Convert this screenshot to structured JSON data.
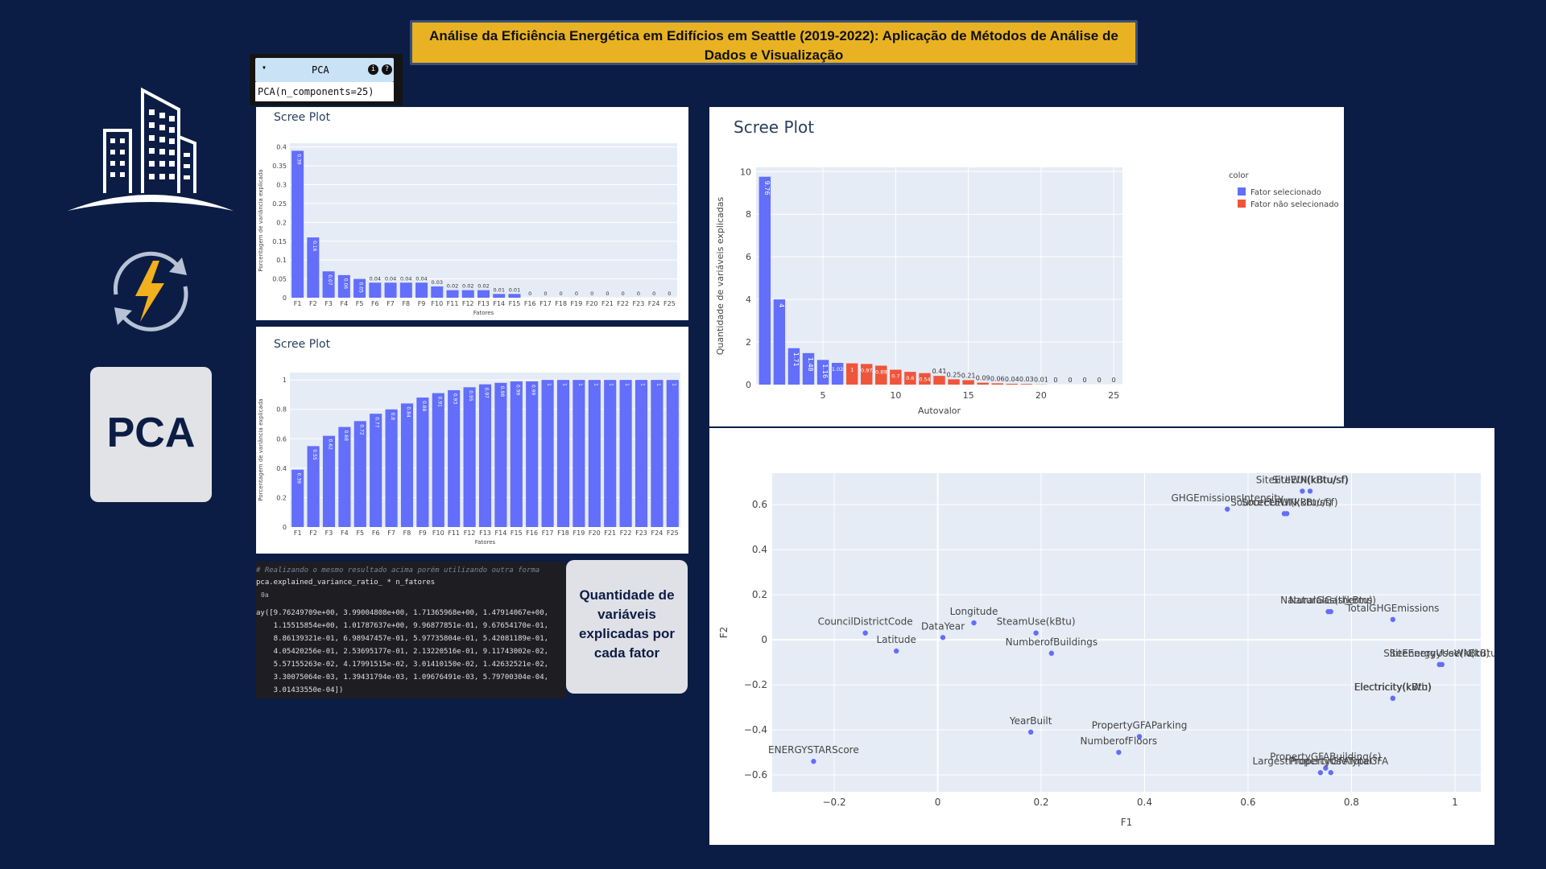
{
  "page_title": "Análise da Eficiência Energética em Edifícios em Seattle (2019-2022): Aplicação de Métodos de Análise de Dados e Visualização",
  "colors": {
    "background": "#0c1d45",
    "title_bg": "#e8b223",
    "selected": "#636efa",
    "not_selected": "#ef553b"
  },
  "icons": [
    "building-icon",
    "energy-cycle-icon"
  ],
  "pca_card_label": "PCA",
  "pca_widget": {
    "title": "PCA",
    "call": "PCA(n_components=25)",
    "toggle": "▾",
    "info": "i",
    "help": "?"
  },
  "code_cell": {
    "comment": "# Realizando o mesmo resultado acima porém utilizando outra forma",
    "command": "pca.explained_variance_ratio_ * n_fatores",
    "out_prompt": "0a",
    "output_lines": [
      "ay([9.76249709e+00, 3.99004808e+00, 1.71365968e+00, 1.47914067e+00,",
      "    1.15515854e+00, 1.01787637e+00, 9.96877851e-01, 9.67654170e-01,",
      "    8.86139321e-01, 6.98947457e-01, 5.97735804e-01, 5.42081189e-01,",
      "    4.05420256e-01, 2.53695177e-01, 2.13220516e-01, 9.11743002e-02,",
      "    5.57155263e-02, 4.17991515e-02, 3.01410150e-02, 1.42632521e-02,",
      "    3.30075064e-03, 1.39431794e-03, 1.09676491e-03, 5.79700304e-04,",
      "    3.01433550e-04])"
    ]
  },
  "quantity_card": {
    "lines": [
      "Quantidade de",
      "variáveis",
      "explicadas por",
      "cada fator"
    ]
  },
  "chart_data": [
    {
      "type": "bar",
      "title": "Scree Plot",
      "xlabel": "Fatores",
      "ylabel": "Porcentagem de variância explicada",
      "categories": [
        "F1",
        "F2",
        "F3",
        "F4",
        "F5",
        "F6",
        "F7",
        "F8",
        "F9",
        "F10",
        "F11",
        "F12",
        "F13",
        "F14",
        "F15",
        "F16",
        "F17",
        "F18",
        "F19",
        "F20",
        "F21",
        "F22",
        "F23",
        "F24",
        "F25"
      ],
      "values": [
        0.39,
        0.16,
        0.07,
        0.06,
        0.05,
        0.04,
        0.04,
        0.04,
        0.04,
        0.03,
        0.02,
        0.02,
        0.02,
        0.01,
        0.01,
        0,
        0,
        0,
        0,
        0,
        0,
        0,
        0,
        0,
        0
      ],
      "labels": [
        "0.39",
        "0.16",
        "0.07",
        "0.06",
        "0.05",
        "0.04",
        "0.04",
        "0.04",
        "0.04",
        "0.03",
        "0.02",
        "0.02",
        "0.02",
        "0.01",
        "0.01",
        "0",
        "0",
        "0",
        "0",
        "0",
        "0",
        "0",
        "0",
        "0",
        "0"
      ],
      "yticks": [
        0,
        0.05,
        0.1,
        0.15,
        0.2,
        0.25,
        0.3,
        0.35,
        0.4
      ],
      "ylim": [
        0,
        0.41
      ],
      "grid": true
    },
    {
      "type": "bar",
      "title": "Scree Plot",
      "xlabel": "Fatores",
      "ylabel": "Porcentagem de variância explicada",
      "categories": [
        "F1",
        "F2",
        "F3",
        "F4",
        "F5",
        "F6",
        "F7",
        "F8",
        "F9",
        "F10",
        "F11",
        "F12",
        "F13",
        "F14",
        "F15",
        "F16",
        "F17",
        "F18",
        "F19",
        "F20",
        "F21",
        "F22",
        "F23",
        "F24",
        "F25"
      ],
      "values": [
        0.39,
        0.55,
        0.62,
        0.68,
        0.72,
        0.77,
        0.8,
        0.84,
        0.88,
        0.91,
        0.93,
        0.95,
        0.97,
        0.98,
        0.99,
        0.99,
        1,
        1,
        1,
        1,
        1,
        1,
        1,
        1,
        1
      ],
      "labels": [
        "0.39",
        "0.55",
        "0.62",
        "0.68",
        "0.72",
        "0.77",
        "0.8",
        "0.84",
        "0.88",
        "0.91",
        "0.93",
        "0.95",
        "0.97",
        "0.98",
        "0.99",
        "0.99",
        "1",
        "1",
        "1",
        "1",
        "1",
        "1",
        "1",
        "1",
        "1"
      ],
      "yticks": [
        0,
        0.2,
        0.4,
        0.6,
        0.8,
        1
      ],
      "ylim": [
        0,
        1.05
      ],
      "grid": true
    },
    {
      "type": "bar",
      "title": "Scree Plot",
      "xlabel": "Autovalor",
      "ylabel": "Quantidade de variáveis explicadas",
      "legend_title": "color",
      "legend_position": "top-right",
      "series": [
        {
          "name": "Fator selecionado",
          "color": "#636efa"
        },
        {
          "name": "Fator não selecionado",
          "color": "#ef553b"
        }
      ],
      "x": [
        1,
        2,
        3,
        4,
        5,
        6,
        7,
        8,
        9,
        10,
        11,
        12,
        13,
        14,
        15,
        16,
        17,
        18,
        19,
        20,
        21,
        22,
        23,
        24,
        25
      ],
      "values": [
        9.76,
        4,
        1.71,
        1.48,
        1.16,
        1.02,
        1,
        0.97,
        0.89,
        0.7,
        0.6,
        0.54,
        0.41,
        0.25,
        0.21,
        0.09,
        0.06,
        0.04,
        0.03,
        0.01,
        0,
        0,
        0,
        0,
        0
      ],
      "labels": [
        "9.76",
        "4",
        "1.71",
        "1.48",
        "1.16",
        "1.02",
        "1",
        "0.97",
        "0.89",
        "0.7",
        "0.6",
        "0.54",
        "0.41",
        "0.25",
        "0.21",
        "0.09",
        "0.06",
        "0.04",
        "0.03",
        "0.01",
        "0",
        "0",
        "0",
        "0",
        "0"
      ],
      "selected": [
        true,
        true,
        true,
        true,
        true,
        true,
        false,
        false,
        false,
        false,
        false,
        false,
        false,
        false,
        false,
        false,
        false,
        false,
        false,
        false,
        false,
        false,
        false,
        false,
        false
      ],
      "xticks": [
        5,
        10,
        15,
        20,
        25
      ],
      "yticks": [
        0,
        2,
        4,
        6,
        8,
        10
      ],
      "ylim": [
        0,
        10.2
      ],
      "xlim": [
        0.4,
        25.6
      ],
      "grid": true
    },
    {
      "type": "scatter",
      "xlabel": "F1",
      "ylabel": "F2",
      "xticks": [
        -0.2,
        0,
        0.2,
        0.4,
        0.6,
        0.8,
        1
      ],
      "yticks": [
        -0.6,
        -0.4,
        -0.2,
        0,
        0.2,
        0.4,
        0.6
      ],
      "xlim": [
        -0.32,
        1.05
      ],
      "ylim": [
        -0.675,
        0.74
      ],
      "grid": true,
      "points": [
        {
          "label": "SiteEUIWN(kBtu/sf)",
          "x": 0.705,
          "y": 0.66,
          "anchor": "middle",
          "dy": -10
        },
        {
          "label": "SiteEUI(kBtu/sf)",
          "x": 0.72,
          "y": 0.66,
          "anchor": "middle",
          "dy": -10
        },
        {
          "label": "SourceEUIWN(kBtu/sf)",
          "x": 0.67,
          "y": 0.56,
          "anchor": "middle",
          "dy": -10
        },
        {
          "label": "SourceEUI(kBtu/sf)",
          "x": 0.675,
          "y": 0.56,
          "anchor": "middle",
          "dy": -10
        },
        {
          "label": "GHGEmissionsIntensity",
          "x": 0.56,
          "y": 0.58,
          "anchor": "middle",
          "dy": -10
        },
        {
          "label": "NaturalGas(therms)",
          "x": 0.755,
          "y": 0.125,
          "anchor": "middle",
          "dy": -10
        },
        {
          "label": "NaturalGas(kBtu)",
          "x": 0.76,
          "y": 0.125,
          "anchor": "middle",
          "dy": -10
        },
        {
          "label": "TotalGHGEmissions",
          "x": 0.88,
          "y": 0.09,
          "anchor": "middle",
          "dy": -10
        },
        {
          "label": "SiteEnergyUse(kBtu)",
          "x": 0.97,
          "y": -0.11,
          "anchor": "middle",
          "dy": -10
        },
        {
          "label": "SiteEnergyUseWN(kBtu)",
          "x": 0.975,
          "y": -0.11,
          "anchor": "middle",
          "dy": -10
        },
        {
          "label": "Electricity(kWh)",
          "x": 0.88,
          "y": -0.26,
          "anchor": "middle",
          "dy": -10
        },
        {
          "label": "Electricity(kBtu)",
          "x": 0.88,
          "y": -0.26,
          "anchor": "middle",
          "dy": -10
        },
        {
          "label": "CouncilDistrictCode",
          "x": -0.14,
          "y": 0.03,
          "anchor": "middle",
          "dy": -10
        },
        {
          "label": "Longitude",
          "x": 0.07,
          "y": 0.075,
          "anchor": "middle",
          "dy": -10
        },
        {
          "label": "DataYear",
          "x": 0.01,
          "y": 0.01,
          "anchor": "middle",
          "dy": -10
        },
        {
          "label": "Latitude",
          "x": -0.08,
          "y": -0.05,
          "anchor": "middle",
          "dy": -10
        },
        {
          "label": "SteamUse(kBtu)",
          "x": 0.19,
          "y": 0.03,
          "anchor": "middle",
          "dy": -10
        },
        {
          "label": "NumberofBuildings",
          "x": 0.22,
          "y": -0.06,
          "anchor": "middle",
          "dy": -10
        },
        {
          "label": "YearBuilt",
          "x": 0.18,
          "y": -0.41,
          "anchor": "middle",
          "dy": -10
        },
        {
          "label": "PropertyGFAParking",
          "x": 0.39,
          "y": -0.43,
          "anchor": "middle",
          "dy": -10
        },
        {
          "label": "NumberofFloors",
          "x": 0.35,
          "y": -0.5,
          "anchor": "middle",
          "dy": -10
        },
        {
          "label": "ENERGYSTARScore",
          "x": -0.24,
          "y": -0.54,
          "anchor": "middle",
          "dy": -10
        },
        {
          "label": "PropertyGFABuilding(s)",
          "x": 0.75,
          "y": -0.57,
          "anchor": "middle",
          "dy": -10
        },
        {
          "label": "LargestPropertyUseTypeGFA",
          "x": 0.74,
          "y": -0.59,
          "anchor": "middle",
          "dy": -10
        },
        {
          "label": "PropertyGFATotal",
          "x": 0.76,
          "y": -0.59,
          "anchor": "middle",
          "dy": -10
        }
      ]
    }
  ]
}
